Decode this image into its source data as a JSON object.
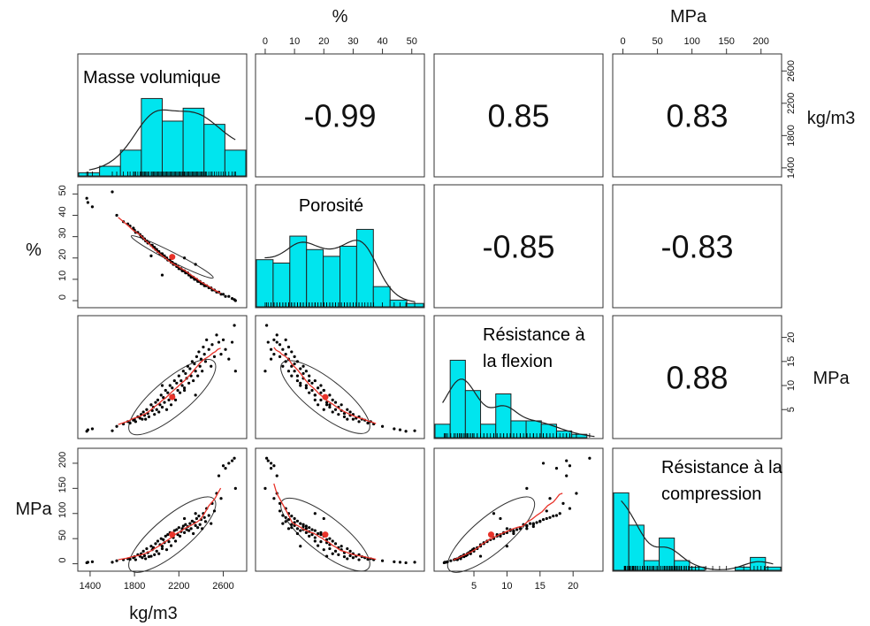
{
  "chart_data": {
    "type": "scatter",
    "subtype": "pairs-panels",
    "variables": [
      {
        "name": "Masse volumique",
        "unit": "kg/m3",
        "range": [
          1350,
          2750
        ],
        "ticks": [
          1400,
          1800,
          2200,
          2600
        ],
        "hist": [
          1,
          3,
          8,
          24,
          17,
          21,
          16,
          8
        ]
      },
      {
        "name": "Porosité",
        "unit": "%",
        "range": [
          -1,
          52
        ],
        "ticks": [
          0,
          10,
          20,
          30,
          40,
          50
        ],
        "hist": [
          14,
          13,
          21,
          17,
          15,
          18,
          23,
          6,
          2,
          1
        ]
      },
      {
        "name": "Résistance à\nla flexion",
        "unit": "MPa",
        "range": [
          0,
          23.5
        ],
        "ticks": [
          5,
          10,
          15,
          20
        ],
        "hist": [
          4,
          23,
          14,
          4,
          13,
          5,
          5,
          4,
          2,
          1,
          0
        ]
      },
      {
        "name": "Résistance à la\ncompression",
        "unit": "MPa",
        "range": [
          -5,
          220
        ],
        "ticks": [
          0,
          50,
          100,
          150,
          200
        ],
        "hist": [
          24,
          14,
          3,
          10,
          3,
          1,
          0,
          0,
          1,
          4,
          1
        ]
      }
    ],
    "correlations": [
      {
        "row": 0,
        "col": 1,
        "value": "-0.99"
      },
      {
        "row": 0,
        "col": 2,
        "value": "0.85"
      },
      {
        "row": 0,
        "col": 3,
        "value": "0.83"
      },
      {
        "row": 1,
        "col": 2,
        "value": "-0.85"
      },
      {
        "row": 1,
        "col": 3,
        "value": "-0.83"
      },
      {
        "row": 2,
        "col": 3,
        "value": "0.88"
      }
    ],
    "means": [
      2140,
      20.5,
      7.6,
      58
    ],
    "observations": [
      {
        "v": [
          1370,
          48,
          0.5,
          2
        ]
      },
      {
        "v": [
          1380,
          46,
          0.8,
          3
        ]
      },
      {
        "v": [
          1420,
          44,
          1.0,
          4
        ]
      },
      {
        "v": [
          1600,
          51,
          0.6,
          3
        ]
      },
      {
        "v": [
          1640,
          40,
          1.5,
          6
        ]
      },
      {
        "v": [
          1700,
          37,
          2.0,
          8
        ]
      },
      {
        "v": [
          1740,
          36,
          2.5,
          10
        ]
      },
      {
        "v": [
          1760,
          35,
          2.2,
          9
        ]
      },
      {
        "v": [
          1790,
          34,
          2.8,
          12
        ]
      },
      {
        "v": [
          1800,
          33,
          3.0,
          14
        ]
      },
      {
        "v": [
          1810,
          32,
          2.5,
          8
        ]
      },
      {
        "v": [
          1830,
          32,
          3.5,
          18
        ]
      },
      {
        "v": [
          1850,
          31,
          3.2,
          15
        ]
      },
      {
        "v": [
          1860,
          30,
          4.0,
          20
        ]
      },
      {
        "v": [
          1870,
          30,
          3.0,
          12
        ]
      },
      {
        "v": [
          1880,
          29,
          4.5,
          25
        ]
      },
      {
        "v": [
          1890,
          29,
          3.8,
          16
        ]
      },
      {
        "v": [
          1900,
          28,
          3.0,
          10
        ]
      },
      {
        "v": [
          1910,
          28,
          5.0,
          30
        ]
      },
      {
        "v": [
          1920,
          27,
          4.2,
          22
        ]
      },
      {
        "v": [
          1930,
          27,
          3.5,
          14
        ]
      },
      {
        "v": [
          1950,
          26,
          6.0,
          35
        ]
      },
      {
        "v": [
          1960,
          26,
          4.8,
          28
        ]
      },
      {
        "v": [
          1970,
          25,
          5.5,
          32
        ]
      },
      {
        "v": [
          1980,
          25,
          4.0,
          18
        ]
      },
      {
        "v": [
          1990,
          24,
          6.5,
          40
        ]
      },
      {
        "v": [
          2000,
          24,
          5.0,
          25
        ]
      },
      {
        "v": [
          2010,
          23,
          7.0,
          45
        ]
      },
      {
        "v": [
          2020,
          23,
          4.5,
          20
        ]
      },
      {
        "v": [
          2030,
          22,
          6.0,
          38
        ]
      },
      {
        "v": [
          2040,
          22,
          8.0,
          50
        ]
      },
      {
        "v": [
          2050,
          22,
          5.5,
          30
        ]
      },
      {
        "v": [
          2060,
          21,
          7.5,
          48
        ]
      },
      {
        "v": [
          2070,
          21,
          6.5,
          42
        ]
      },
      {
        "v": [
          2080,
          20,
          9.0,
          55
        ]
      },
      {
        "v": [
          2090,
          20,
          5.0,
          28
        ]
      },
      {
        "v": [
          2100,
          19,
          8.5,
          58
        ]
      },
      {
        "v": [
          2110,
          19,
          7.0,
          44
        ]
      },
      {
        "v": [
          2120,
          19,
          10.0,
          62
        ]
      },
      {
        "v": [
          2130,
          18,
          6.0,
          36
        ]
      },
      {
        "v": [
          2140,
          18,
          9.5,
          60
        ]
      },
      {
        "v": [
          2150,
          17,
          8.0,
          52
        ]
      },
      {
        "v": [
          2160,
          17,
          11.0,
          66
        ]
      },
      {
        "v": [
          2170,
          17,
          7.0,
          45
        ]
      },
      {
        "v": [
          2180,
          16,
          10.5,
          68
        ]
      },
      {
        "v": [
          2190,
          16,
          9.0,
          58
        ]
      },
      {
        "v": [
          2200,
          15,
          12.0,
          72
        ]
      },
      {
        "v": [
          2210,
          15,
          8.5,
          55
        ]
      },
      {
        "v": [
          2220,
          15,
          11.0,
          64
        ]
      },
      {
        "v": [
          2230,
          14,
          10.0,
          70
        ]
      },
      {
        "v": [
          2240,
          14,
          13.0,
          75
        ]
      },
      {
        "v": [
          2250,
          14,
          9.5,
          62
        ]
      },
      {
        "v": [
          2260,
          13,
          12.5,
          78
        ]
      },
      {
        "v": [
          2270,
          13,
          11.5,
          68
        ]
      },
      {
        "v": [
          2280,
          13,
          14.0,
          74
        ]
      },
      {
        "v": [
          2290,
          12,
          10.5,
          66
        ]
      },
      {
        "v": [
          2300,
          12,
          13.5,
          80
        ]
      },
      {
        "v": [
          2310,
          11,
          12.0,
          70
        ]
      },
      {
        "v": [
          2320,
          11,
          15.0,
          85
        ]
      },
      {
        "v": [
          2330,
          11,
          11.0,
          60
        ]
      },
      {
        "v": [
          2340,
          10,
          14.5,
          82
        ]
      },
      {
        "v": [
          2350,
          10,
          13.0,
          76
        ]
      },
      {
        "v": [
          2360,
          10,
          16.0,
          90
        ]
      },
      {
        "v": [
          2370,
          9,
          12.0,
          72
        ]
      },
      {
        "v": [
          2380,
          9,
          17.0,
          95
        ]
      },
      {
        "v": [
          2390,
          9,
          14.0,
          78
        ]
      },
      {
        "v": [
          2400,
          8,
          15.5,
          88
        ]
      },
      {
        "v": [
          2410,
          8,
          13.0,
          70
        ]
      },
      {
        "v": [
          2420,
          8,
          18.0,
          100
        ]
      },
      {
        "v": [
          2430,
          7,
          16.5,
          92
        ]
      },
      {
        "v": [
          2440,
          7,
          15.0,
          84
        ]
      },
      {
        "v": [
          2450,
          7,
          19.5,
          110
        ]
      },
      {
        "v": [
          2470,
          6,
          17.5,
          96
        ]
      },
      {
        "v": [
          2490,
          6,
          14.0,
          80
        ]
      },
      {
        "v": [
          2500,
          5,
          18.5,
          120
        ]
      },
      {
        "v": [
          2520,
          5,
          16.0,
          105
        ]
      },
      {
        "v": [
          2540,
          4,
          20.5,
          140
        ]
      },
      {
        "v": [
          2560,
          4,
          19.0,
          175
        ]
      },
      {
        "v": [
          2580,
          3,
          16.5,
          130
        ]
      },
      {
        "v": [
          2600,
          3,
          19.5,
          195
        ]
      },
      {
        "v": [
          2620,
          2,
          17.5,
          190
        ]
      },
      {
        "v": [
          2650,
          2,
          15.5,
          200
        ]
      },
      {
        "v": [
          2680,
          1,
          19.0,
          205
        ]
      },
      {
        "v": [
          2700,
          0.5,
          22.5,
          210
        ]
      },
      {
        "v": [
          2710,
          0,
          13.0,
          150
        ]
      },
      {
        "v": [
          2250,
          20,
          9.0,
          90
        ]
      },
      {
        "v": [
          2350,
          17,
          8.0,
          100
        ]
      },
      {
        "v": [
          1950,
          21,
          6.0,
          15
        ]
      },
      {
        "v": [
          2050,
          12,
          10.0,
          35
        ]
      }
    ]
  }
}
